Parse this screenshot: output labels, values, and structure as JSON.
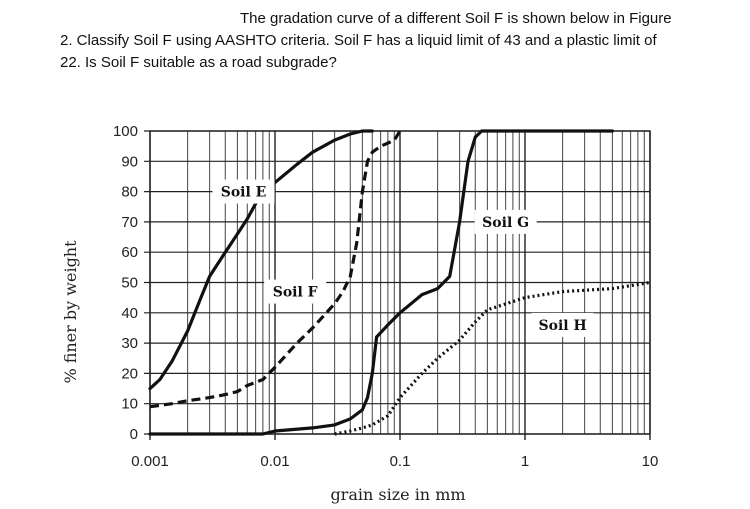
{
  "question": {
    "line1": "The gradation curve of a different Soil F is shown below in Figure",
    "line2": "2. Classify Soil F using AASHTO criteria. Soil F has a liquid limit of 43 and a plastic limit of",
    "line3": "22. Is Soil F suitable as a road subgrade?"
  },
  "chart_data": {
    "type": "line",
    "xlabel": "grain size in mm",
    "ylabel": "% finer by weight",
    "xscale": "log",
    "xlim": [
      0.001,
      10
    ],
    "ylim": [
      0,
      100
    ],
    "xticks": [
      0.001,
      0.01,
      0.1,
      1,
      10
    ],
    "xtick_labels": [
      "0.001",
      "0.01",
      "0.1",
      "1",
      "10"
    ],
    "yticks": [
      0,
      10,
      20,
      30,
      40,
      50,
      60,
      70,
      80,
      90,
      100
    ],
    "grid": true,
    "series": [
      {
        "name": "Soil E",
        "style": "solid",
        "x": [
          0.001,
          0.0012,
          0.0015,
          0.002,
          0.0025,
          0.003,
          0.004,
          0.005,
          0.006,
          0.007,
          0.008,
          0.01,
          0.015,
          0.02,
          0.03,
          0.04,
          0.05,
          0.06
        ],
        "y": [
          15,
          18,
          24,
          34,
          44,
          52,
          60,
          66,
          71,
          76,
          79,
          83,
          89,
          93,
          97,
          99,
          100,
          100
        ]
      },
      {
        "name": "Soil F",
        "style": "dashed",
        "x": [
          0.001,
          0.0015,
          0.002,
          0.003,
          0.004,
          0.005,
          0.006,
          0.008,
          0.01,
          0.015,
          0.02,
          0.03,
          0.035,
          0.04,
          0.045,
          0.05,
          0.055,
          0.06,
          0.07,
          0.08,
          0.09,
          0.1
        ],
        "y": [
          9,
          10,
          11,
          12,
          13,
          14,
          16,
          18,
          22,
          30,
          35,
          43,
          47,
          52,
          63,
          80,
          90,
          93,
          95,
          96,
          97,
          100
        ]
      },
      {
        "name": "Soil G",
        "style": "solid",
        "x": [
          0.001,
          0.005,
          0.008,
          0.01,
          0.02,
          0.03,
          0.04,
          0.05,
          0.055,
          0.06,
          0.065,
          0.08,
          0.1,
          0.15,
          0.2,
          0.25,
          0.3,
          0.35,
          0.4,
          0.45,
          5
        ],
        "y": [
          0,
          0,
          0,
          1,
          2,
          3,
          5,
          8,
          12,
          20,
          32,
          36,
          40,
          46,
          48,
          52,
          70,
          90,
          98,
          100,
          100
        ]
      },
      {
        "name": "Soil H",
        "style": "dotted",
        "x": [
          0.03,
          0.04,
          0.05,
          0.06,
          0.08,
          0.1,
          0.15,
          0.2,
          0.3,
          0.4,
          0.5,
          1,
          2,
          5,
          10
        ],
        "y": [
          0,
          1,
          2,
          3,
          6,
          12,
          20,
          25,
          31,
          37,
          41,
          45,
          47,
          48,
          50
        ]
      }
    ],
    "annotations": [
      "Soil E",
      "Soil F",
      "Soil G",
      "Soil H"
    ]
  }
}
